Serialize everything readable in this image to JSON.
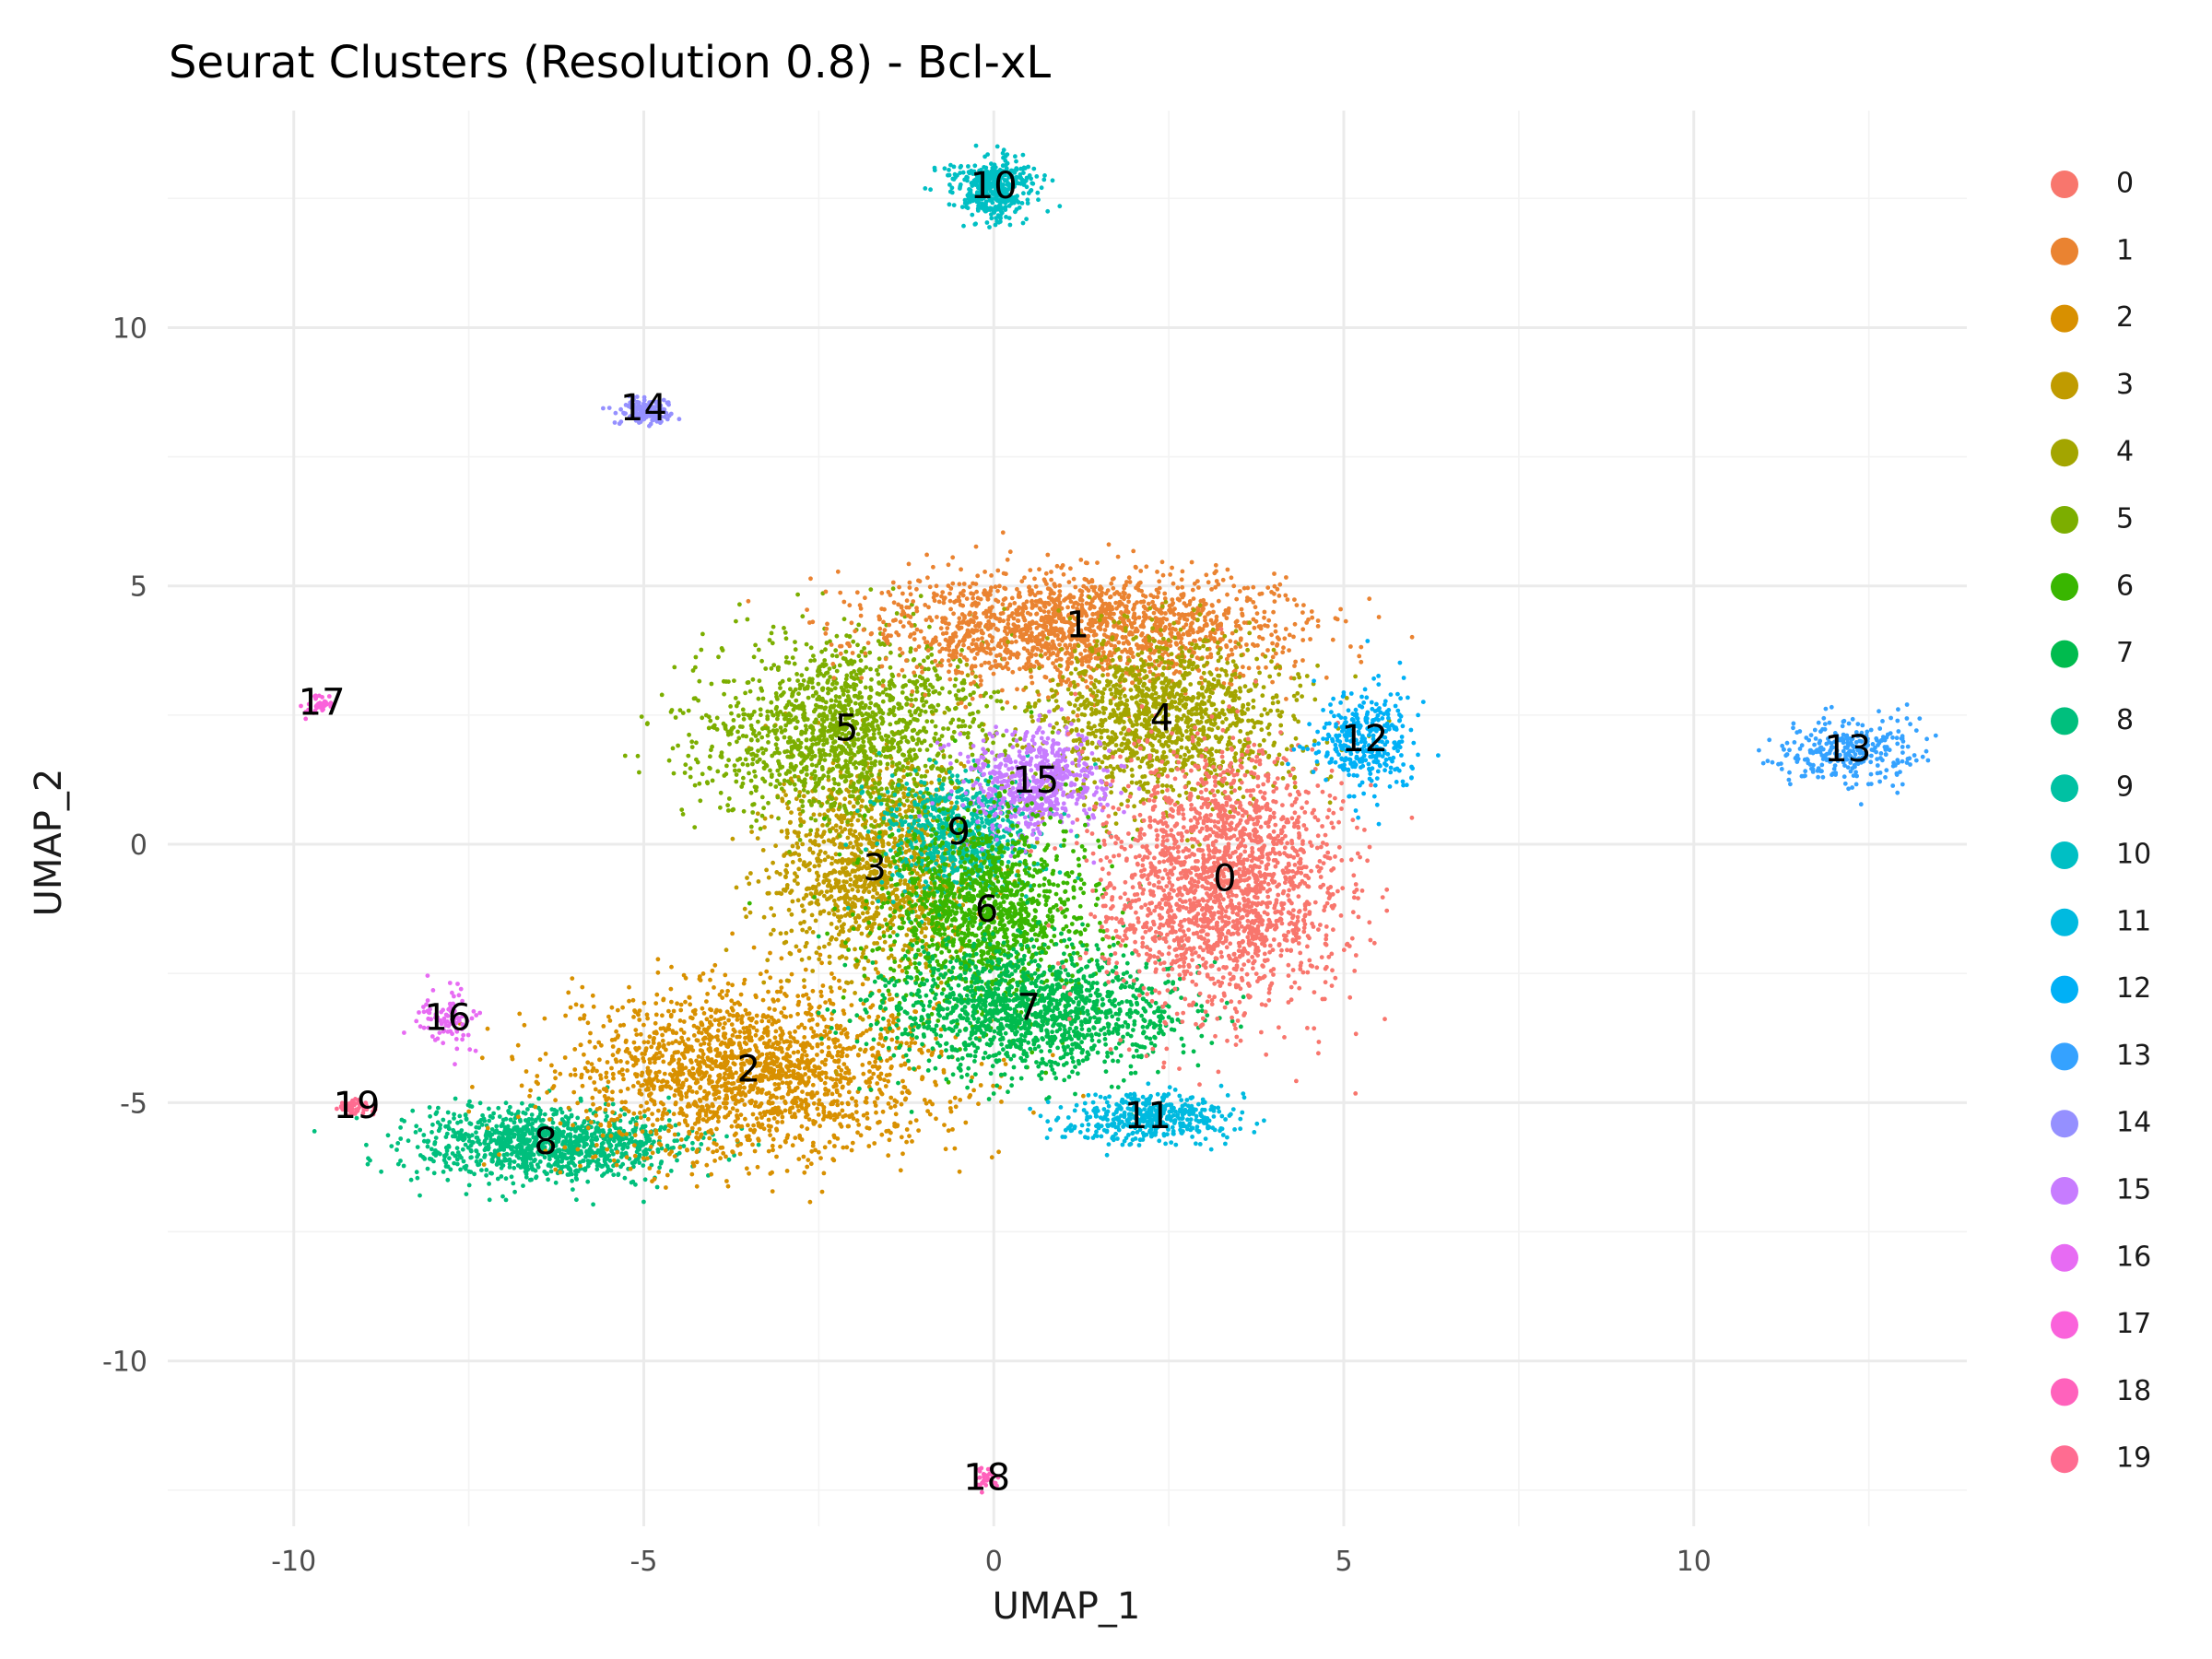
{
  "chart_data": {
    "type": "scatter",
    "title": "Seurat Clusters (Resolution 0.8) - Bcl-xL",
    "xlabel": "UMAP_1",
    "ylabel": "UMAP_2",
    "xlim": [
      -11.8,
      13.9
    ],
    "ylim": [
      -13.2,
      14.2
    ],
    "x_ticks": [
      -10,
      -5,
      0,
      5,
      10
    ],
    "y_ticks": [
      -10,
      -5,
      0,
      5,
      10
    ],
    "x_tick_labels": [
      "-10",
      "-5",
      "0",
      "5",
      "10"
    ],
    "y_tick_labels": [
      "-10",
      "-5",
      "0",
      "5",
      "10"
    ],
    "grid": true,
    "legend_position": "right",
    "legend": [
      {
        "label": "0",
        "color": "#F8766D"
      },
      {
        "label": "1",
        "color": "#EA8331"
      },
      {
        "label": "2",
        "color": "#D89000"
      },
      {
        "label": "3",
        "color": "#C09B00"
      },
      {
        "label": "4",
        "color": "#A3A500"
      },
      {
        "label": "5",
        "color": "#7CAE00"
      },
      {
        "label": "6",
        "color": "#39B600"
      },
      {
        "label": "7",
        "color": "#00BB4E"
      },
      {
        "label": "8",
        "color": "#00BF7D"
      },
      {
        "label": "9",
        "color": "#00C1A3"
      },
      {
        "label": "10",
        "color": "#00BFC4"
      },
      {
        "label": "11",
        "color": "#00BAE0"
      },
      {
        "label": "12",
        "color": "#00B0F6"
      },
      {
        "label": "13",
        "color": "#35A2FF"
      },
      {
        "label": "14",
        "color": "#9590FF"
      },
      {
        "label": "15",
        "color": "#C77CFF"
      },
      {
        "label": "16",
        "color": "#E76BF3"
      },
      {
        "label": "17",
        "color": "#FA62DB"
      },
      {
        "label": "18",
        "color": "#FF62BC"
      },
      {
        "label": "19",
        "color": "#FF6C91"
      }
    ],
    "cluster_labels": [
      {
        "label": "0",
        "x": 3.3,
        "y": -0.7
      },
      {
        "label": "1",
        "x": 1.2,
        "y": 4.2
      },
      {
        "label": "2",
        "x": -3.5,
        "y": -4.4
      },
      {
        "label": "3",
        "x": -1.7,
        "y": -0.5
      },
      {
        "label": "4",
        "x": 2.4,
        "y": 2.4
      },
      {
        "label": "5",
        "x": -2.1,
        "y": 2.2
      },
      {
        "label": "6",
        "x": -0.1,
        "y": -1.3
      },
      {
        "label": "7",
        "x": 0.5,
        "y": -3.2
      },
      {
        "label": "8",
        "x": -6.4,
        "y": -5.8
      },
      {
        "label": "9",
        "x": -0.5,
        "y": 0.2
      },
      {
        "label": "10",
        "x": 0.0,
        "y": 12.7
      },
      {
        "label": "11",
        "x": 2.2,
        "y": -5.3
      },
      {
        "label": "12",
        "x": 5.3,
        "y": 2.0
      },
      {
        "label": "13",
        "x": 12.2,
        "y": 1.8
      },
      {
        "label": "14",
        "x": -5.0,
        "y": 8.4
      },
      {
        "label": "15",
        "x": 0.6,
        "y": 1.2
      },
      {
        "label": "16",
        "x": -7.8,
        "y": -3.4
      },
      {
        "label": "17",
        "x": -9.6,
        "y": 2.7
      },
      {
        "label": "18",
        "x": -0.1,
        "y": -12.3
      },
      {
        "label": "19",
        "x": -9.1,
        "y": -5.1
      }
    ]
  }
}
